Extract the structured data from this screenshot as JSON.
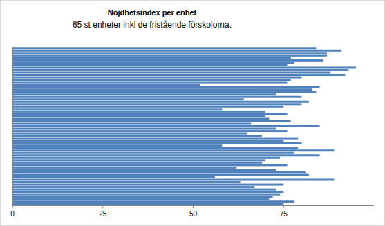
{
  "chart_data": {
    "type": "bar",
    "orientation": "horizontal",
    "title": "Nöjdhetsindex per enhet",
    "subtitle": "65 st enheter inkl de fristående förskolorna.",
    "categories": [
      null,
      null,
      null,
      null,
      null,
      null,
      null,
      null,
      null,
      null,
      null,
      null,
      null,
      null,
      null,
      null,
      null,
      null,
      null,
      null,
      null,
      null,
      null,
      null,
      null,
      null,
      null,
      null,
      null,
      null,
      null,
      null,
      null,
      null,
      null,
      null,
      null,
      null,
      null,
      null,
      null,
      null,
      null,
      null,
      null,
      null,
      null,
      null,
      null,
      null,
      null,
      null,
      null,
      null,
      null,
      null,
      null,
      null,
      null,
      null,
      null,
      null,
      null,
      null,
      null
    ],
    "values": [
      84,
      91,
      87,
      87,
      77,
      86,
      78,
      76,
      95,
      93,
      88,
      92,
      80,
      77,
      76,
      52,
      85,
      83,
      84,
      73,
      80,
      64,
      82,
      80,
      75,
      58,
      70,
      76,
      70,
      71,
      77,
      66,
      85,
      73,
      76,
      65,
      69,
      79,
      75,
      80,
      58,
      79,
      89,
      78,
      85,
      74,
      70,
      69,
      76,
      62,
      73,
      81,
      82,
      56,
      89,
      63,
      75,
      67,
      73,
      75,
      74,
      72,
      71,
      78,
      75
    ],
    "color": "#4f81bd",
    "xlim": [
      0,
      100
    ],
    "xticks": [
      0,
      25,
      50,
      75
    ],
    "grid": false
  }
}
